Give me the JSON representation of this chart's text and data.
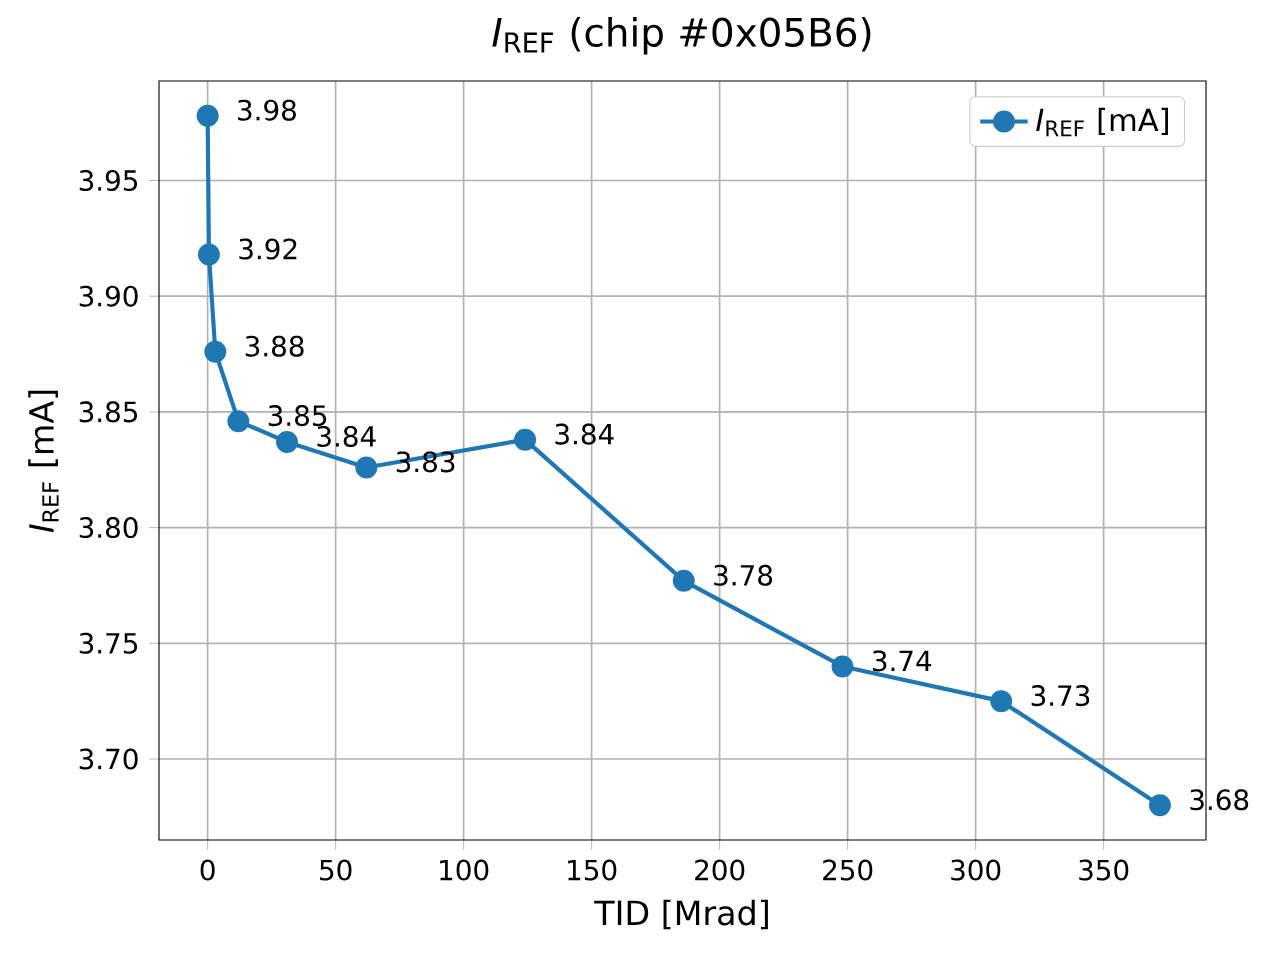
{
  "chart_data": {
    "type": "line",
    "title": "*I*$_{REF}$ (chip #0x05B6)",
    "xlabel": "TID [Mrad]",
    "ylabel": "*I*$_{REF}$ [mA]",
    "x": [
      0,
      0.5,
      3,
      12,
      31,
      62,
      124,
      186,
      248,
      310,
      372
    ],
    "series": [
      {
        "name": "*I*$_{REF}$ [mA]",
        "color": "#1f77b4",
        "values": [
          3.978,
          3.918,
          3.876,
          3.846,
          3.837,
          3.826,
          3.838,
          3.777,
          3.74,
          3.725,
          3.68
        ],
        "value_labels": [
          "3.98",
          "3.92",
          "3.88",
          "3.85",
          "3.84",
          "3.83",
          "3.84",
          "3.78",
          "3.74",
          "3.73",
          "3.68"
        ]
      }
    ],
    "xlim": [
      -19,
      390
    ],
    "ylim": [
      3.665,
      3.993
    ],
    "xticks": [
      0,
      50,
      100,
      150,
      200,
      250,
      300,
      350
    ],
    "yticks": [
      {
        "value": 3.7,
        "label": "3.70"
      },
      {
        "value": 3.75,
        "label": "3.75"
      },
      {
        "value": 3.8,
        "label": "3.80"
      },
      {
        "value": 3.85,
        "label": "3.85"
      },
      {
        "value": 3.9,
        "label": "3.90"
      },
      {
        "value": 3.95,
        "label": "3.95"
      }
    ],
    "grid": true,
    "legend": "top right",
    "marker": "circle",
    "line_style": "solid"
  }
}
